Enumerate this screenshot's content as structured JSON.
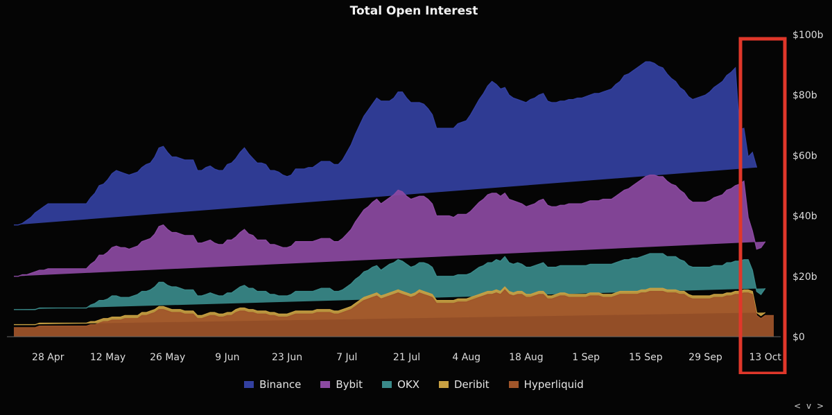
{
  "title": "Total Open Interest",
  "nav": {
    "label": "< v >"
  },
  "chart_data": {
    "type": "area",
    "stacked": true,
    "title": "Total Open Interest",
    "xlabel": "",
    "ylabel": "",
    "ylim": [
      0,
      100
    ],
    "yticks": [
      "$0",
      "$20b",
      "$40b",
      "$60b",
      "$80b",
      "$100b"
    ],
    "ytick_values": [
      0,
      20,
      40,
      60,
      80,
      100
    ],
    "xticks": [
      "28 Apr",
      "12 May",
      "26 May",
      "9 Jun",
      "23 Jun",
      "7 Jul",
      "21 Jul",
      "4 Aug",
      "18 Aug",
      "1 Sep",
      "15 Sep",
      "29 Sep",
      "13 Oct"
    ],
    "xtick_positions": [
      8,
      22,
      36,
      50,
      64,
      78,
      92,
      106,
      120,
      134,
      148,
      162,
      176
    ],
    "x_start": "2025-04-20",
    "x_end": "2025-10-14",
    "legend_position": "bottom",
    "grid": false,
    "annotation": "red highlight box over the last week (around 10-14 Oct)",
    "series": [
      {
        "name": "Hyperliquid",
        "color": "#a0552a",
        "values": [
          3,
          3,
          3,
          3,
          3,
          3,
          3.5,
          3.5,
          3.5,
          3.5,
          3.5,
          3.5,
          3.5,
          3.5,
          3.5,
          3.5,
          3.5,
          3.5,
          4,
          4,
          4.5,
          5,
          5,
          5.5,
          5.5,
          5.5,
          6,
          6,
          6,
          6,
          7,
          7,
          7.5,
          8,
          9,
          9,
          8.5,
          8,
          8,
          8,
          7.5,
          7.5,
          7.5,
          6,
          6,
          6.5,
          7,
          7,
          6.5,
          6.5,
          7,
          7,
          8,
          8.5,
          8.5,
          8,
          8,
          7.5,
          7.5,
          7.5,
          7,
          7,
          6.5,
          6.5,
          6.5,
          7,
          7.5,
          7.5,
          7.5,
          7.5,
          7.5,
          8,
          8,
          8,
          8,
          7.5,
          7.5,
          8,
          8.5,
          9,
          10,
          11,
          12,
          12.5,
          13,
          13.5,
          12.5,
          13,
          13.5,
          14,
          14.5,
          14,
          13.5,
          13,
          13.5,
          14.5,
          14,
          13.5,
          13,
          11,
          11,
          11,
          11,
          11,
          11.5,
          11.5,
          11.5,
          12,
          12.5,
          13,
          13.5,
          14,
          14,
          14.5,
          14,
          15.5,
          14,
          13.5,
          14,
          14,
          13,
          13,
          13.5,
          14,
          14,
          12.5,
          12.5,
          13,
          13.5,
          13.5,
          13,
          13,
          13,
          13,
          13,
          13.5,
          13.5,
          13.5,
          13,
          13,
          13,
          13.5,
          14,
          14,
          14,
          14,
          14,
          14.5,
          14.5,
          15,
          15,
          15,
          15,
          14.5,
          14.5,
          14.5,
          14,
          14,
          13,
          12.5,
          12.5,
          12.5,
          12.5,
          12.5,
          13,
          13,
          13,
          13.5,
          13.5,
          14,
          14,
          14.5,
          14.5,
          14,
          7,
          6,
          7,
          7,
          7
        ]
      },
      {
        "name": "Deribit",
        "color": "#c8a042",
        "values": [
          1,
          1,
          1,
          1,
          1,
          1,
          1,
          1,
          1,
          1,
          1,
          1,
          1,
          1,
          1,
          1,
          1,
          1,
          1,
          1,
          1,
          1,
          1,
          1,
          1,
          1,
          1,
          1,
          1,
          1,
          1,
          1,
          1,
          1,
          1,
          1,
          1,
          1,
          1,
          1,
          1,
          1,
          1,
          1,
          1,
          1,
          1,
          1,
          1,
          1,
          1,
          1,
          1,
          1,
          1,
          1,
          1,
          1,
          1,
          1,
          1,
          1,
          1,
          1,
          1,
          1,
          1,
          1,
          1,
          1,
          1,
          1,
          1,
          1,
          1,
          1,
          1,
          1,
          1,
          1,
          1,
          1,
          1,
          1,
          1,
          1,
          1,
          1,
          1,
          1,
          1,
          1,
          1,
          1,
          1,
          1,
          1,
          1,
          1,
          1,
          1,
          1,
          1,
          1,
          1,
          1,
          1,
          1,
          1,
          1,
          1,
          1,
          1,
          1,
          1,
          1,
          1,
          1,
          1,
          1,
          1,
          1,
          1,
          1,
          1,
          1,
          1,
          1,
          1,
          1,
          1,
          1,
          1,
          1,
          1,
          1,
          1,
          1,
          1,
          1,
          1,
          1,
          1,
          1,
          1,
          1,
          1,
          1,
          1,
          1,
          1,
          1,
          1,
          1,
          1,
          1,
          1,
          1,
          1,
          1,
          1,
          1,
          1,
          1,
          1,
          1,
          1,
          1,
          1,
          1,
          1,
          1,
          1,
          1,
          1,
          1,
          1
        ]
      },
      {
        "name": "OKX",
        "color": "#3a8a8a",
        "values": [
          5,
          5,
          5,
          5,
          5,
          5,
          5,
          5,
          5,
          5,
          5,
          5,
          5,
          5,
          5,
          5,
          5,
          5,
          5.5,
          6,
          6.5,
          6,
          6.5,
          7,
          7,
          6.5,
          6,
          6,
          6.5,
          7,
          7,
          7,
          7,
          7.5,
          8,
          8,
          7.5,
          7.5,
          7.5,
          7,
          7,
          7,
          7,
          6.5,
          6.5,
          6.5,
          6.5,
          6,
          6,
          6,
          6.5,
          6.5,
          6.5,
          7,
          7.5,
          7,
          7,
          6.5,
          6.5,
          6.5,
          6,
          6,
          6,
          6,
          6,
          6,
          6.5,
          6.5,
          6.5,
          6.5,
          6.5,
          6.5,
          7,
          7,
          7,
          6.5,
          6.5,
          6.5,
          7,
          7.5,
          8,
          8,
          8.5,
          8.5,
          9,
          9,
          8.5,
          9,
          9.5,
          9.5,
          10,
          10,
          9.5,
          9,
          9,
          9,
          9.5,
          9.5,
          9,
          8,
          8,
          8,
          8,
          8,
          8,
          8,
          8,
          8,
          8.5,
          9,
          9,
          9.5,
          9.5,
          10,
          10,
          10,
          9.5,
          9.5,
          9.5,
          9,
          9,
          9,
          9,
          9,
          9.5,
          9.5,
          9.5,
          9,
          9,
          9,
          9.5,
          9.5,
          9.5,
          9.5,
          9.5,
          9.5,
          9.5,
          9.5,
          10,
          10,
          10,
          10,
          10,
          10.5,
          10.5,
          11,
          11,
          11,
          11.5,
          11.5,
          11.5,
          11.5,
          11.5,
          11,
          11,
          11,
          10.5,
          10,
          9.5,
          9.5,
          9.5,
          9.5,
          9.5,
          9.5,
          9.5,
          9.5,
          9.5,
          10,
          10,
          10,
          10,
          10,
          10,
          7,
          7,
          7,
          8,
          8
        ]
      },
      {
        "name": "Bybit",
        "color": "#8c4aa2",
        "values": [
          11,
          11,
          11.5,
          11.5,
          12,
          12.5,
          12.5,
          12.5,
          13,
          13,
          13,
          13,
          13,
          13,
          13,
          13,
          13,
          13,
          13.5,
          14,
          15,
          15,
          15.5,
          16,
          16.5,
          16.5,
          16.5,
          16,
          16,
          16,
          16.5,
          17,
          17,
          17.5,
          18.5,
          19,
          18.5,
          18,
          18,
          18,
          18,
          18,
          18,
          17.5,
          17.5,
          17.5,
          17.5,
          17,
          17,
          17,
          17.5,
          17.5,
          17.5,
          18,
          18.5,
          18,
          17.5,
          17,
          17,
          17,
          16.5,
          16.5,
          16.5,
          16,
          16,
          16,
          16.5,
          16.5,
          16.5,
          16.5,
          16.5,
          16.5,
          16.5,
          16.5,
          16.5,
          16.5,
          16.5,
          17,
          17.5,
          18,
          19,
          20,
          20.5,
          21,
          21.5,
          22,
          22,
          22,
          22,
          22.5,
          23,
          23,
          22.5,
          22.5,
          22.5,
          22,
          22,
          21.5,
          21,
          20,
          20,
          20,
          20,
          19.5,
          20,
          20,
          20,
          20.5,
          21,
          21.5,
          22,
          22.5,
          23,
          22,
          21.5,
          21,
          21,
          21,
          20,
          20,
          20,
          20.5,
          20.5,
          21,
          21,
          20.5,
          20,
          20,
          20,
          20,
          20.5,
          20.5,
          20.5,
          20.5,
          21,
          21,
          21,
          21,
          21.5,
          21.5,
          21.5,
          22,
          22.5,
          23,
          23.5,
          24,
          25,
          25.5,
          26,
          26,
          26,
          25.5,
          25.5,
          25,
          24,
          23.5,
          23,
          22.5,
          22,
          21.5,
          21.5,
          21.5,
          21.5,
          22,
          22.5,
          23,
          23.5,
          24,
          24.5,
          25,
          25.5,
          26,
          14,
          13,
          14,
          15.5,
          15.5
        ]
      },
      {
        "name": "Binance",
        "color": "#3340a0",
        "values": [
          17,
          17,
          17,
          18,
          18.5,
          19.5,
          20,
          21,
          21.5,
          21.5,
          21.5,
          21.5,
          21.5,
          21.5,
          21.5,
          21.5,
          21.5,
          21.5,
          22,
          22.5,
          23,
          23.5,
          24,
          24.5,
          25,
          25,
          24.5,
          24.5,
          24.5,
          24.5,
          24.5,
          25,
          25,
          25.5,
          26,
          26,
          25.5,
          25,
          25,
          25,
          25,
          25,
          25,
          24,
          24,
          24.5,
          24.5,
          24.5,
          24.5,
          24.5,
          25,
          25.5,
          26,
          26.5,
          27,
          26.5,
          25.5,
          25.5,
          25.5,
          25,
          24.5,
          24.5,
          24.5,
          24,
          23.5,
          23.5,
          24,
          24,
          24,
          24.5,
          24.5,
          25,
          25.5,
          25.5,
          25.5,
          25.5,
          25.5,
          26,
          27,
          28,
          29,
          30,
          31,
          32,
          32.5,
          33.5,
          34,
          33,
          32,
          32,
          32.5,
          33,
          32.5,
          32,
          31.5,
          31,
          30.5,
          30,
          29.5,
          29,
          29,
          29,
          29,
          29.5,
          30,
          30.5,
          31,
          32,
          33,
          34,
          35,
          36,
          37,
          36,
          35.5,
          35,
          34.5,
          34,
          34,
          34,
          34.5,
          35,
          35,
          35,
          35,
          34.5,
          34.5,
          34.5,
          34.5,
          34.5,
          34.5,
          34.5,
          35,
          35,
          35,
          35,
          35.5,
          35.5,
          35.5,
          36,
          36.5,
          37,
          37,
          38,
          38,
          38,
          38,
          38,
          38,
          37.5,
          37,
          36.5,
          36,
          35.5,
          35,
          34.5,
          34,
          34,
          34,
          34,
          34.5,
          35,
          35.5,
          36,
          36.5,
          37,
          37.5,
          38,
          38.5,
          39,
          18,
          17.5,
          20,
          26,
          27
        ]
      }
    ]
  }
}
